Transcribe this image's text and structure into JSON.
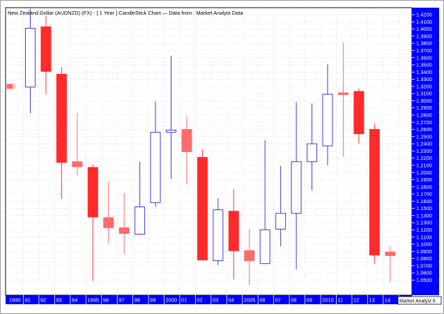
{
  "chart_data": {
    "type": "candlestick",
    "title": "New Zealand Dollar (AUDNZD) (FX) -  [ 1 Year ] CandleStick Chart — Data from : Market Analyst Data",
    "ylim": [
      1.04,
      1.43
    ],
    "y_ticks": [
      "1.4200",
      "1.4100",
      "1.4000",
      "1.3900",
      "1.3800",
      "1.3700",
      "1.3600",
      "1.3500",
      "1.3400",
      "1.3300",
      "1.3200",
      "1.3100",
      "1.3000",
      "1.2900",
      "1.2800",
      "1.2700",
      "1.2600",
      "1.2500",
      "1.2400",
      "1.2300",
      "1.2200",
      "1.2100",
      "1.2000",
      "1.1900",
      "1.1800",
      "1.1700",
      "1.1600",
      "1.1500",
      "1.1400",
      "1.1300",
      "1.1200",
      "1.1100",
      "1.1000",
      "1.0900",
      "1.0800",
      "1.0700",
      "1.0600",
      "1.0500"
    ],
    "x_ticks": [
      "1990",
      "91",
      "92",
      "93",
      "94",
      "1995",
      "96",
      "97",
      "98",
      "99",
      "2000",
      "01",
      "02",
      "03",
      "04",
      "2005",
      "06",
      "07",
      "08",
      "09",
      "2010",
      "11",
      "12",
      "13",
      "14",
      "20"
    ],
    "colors": {
      "up": "#3a3ad4",
      "down_strong": "#ff2a2a",
      "down_light": "#ff6b6b",
      "axis": "#0000ff",
      "grid": "#bdbdbd"
    },
    "candles": [
      {
        "year": "1990",
        "open": 1.323,
        "high": 1.323,
        "low": 1.317,
        "close": 1.317
      },
      {
        "year": "91",
        "open": 1.319,
        "high": 1.428,
        "low": 1.283,
        "close": 1.401
      },
      {
        "year": "92",
        "open": 1.403,
        "high": 1.418,
        "low": 1.309,
        "close": 1.341
      },
      {
        "year": "93",
        "open": 1.337,
        "high": 1.347,
        "low": 1.163,
        "close": 1.214
      },
      {
        "year": "94",
        "open": 1.215,
        "high": 1.283,
        "low": 1.196,
        "close": 1.208
      },
      {
        "year": "1995",
        "open": 1.207,
        "high": 1.211,
        "low": 1.049,
        "close": 1.138
      },
      {
        "year": "96",
        "open": 1.137,
        "high": 1.188,
        "low": 1.101,
        "close": 1.123
      },
      {
        "year": "97",
        "open": 1.123,
        "high": 1.171,
        "low": 1.086,
        "close": 1.115
      },
      {
        "year": "98",
        "open": 1.114,
        "high": 1.215,
        "low": 1.113,
        "close": 1.152
      },
      {
        "year": "99",
        "open": 1.158,
        "high": 1.299,
        "low": 1.152,
        "close": 1.256
      },
      {
        "year": "2000",
        "open": 1.256,
        "high": 1.363,
        "low": 1.191,
        "close": 1.259
      },
      {
        "year": "01",
        "open": 1.26,
        "high": 1.279,
        "low": 1.183,
        "close": 1.229
      },
      {
        "year": "02",
        "open": 1.221,
        "high": 1.232,
        "low": 1.078,
        "close": 1.078
      },
      {
        "year": "03",
        "open": 1.077,
        "high": 1.164,
        "low": 1.071,
        "close": 1.148
      },
      {
        "year": "04",
        "open": 1.146,
        "high": 1.177,
        "low": 1.051,
        "close": 1.091
      },
      {
        "year": "2005",
        "open": 1.091,
        "high": 1.121,
        "low": 1.043,
        "close": 1.077
      },
      {
        "year": "06",
        "open": 1.073,
        "high": 1.245,
        "low": 1.073,
        "close": 1.12
      },
      {
        "year": "07",
        "open": 1.121,
        "high": 1.209,
        "low": 1.097,
        "close": 1.143
      },
      {
        "year": "08",
        "open": 1.143,
        "high": 1.298,
        "low": 1.065,
        "close": 1.215
      },
      {
        "year": "09",
        "open": 1.215,
        "high": 1.296,
        "low": 1.175,
        "close": 1.24
      },
      {
        "year": "2010",
        "open": 1.237,
        "high": 1.351,
        "low": 1.21,
        "close": 1.309
      },
      {
        "year": "11",
        "open": 1.311,
        "high": 1.381,
        "low": 1.222,
        "close": 1.309
      },
      {
        "year": "12",
        "open": 1.313,
        "high": 1.317,
        "low": 1.24,
        "close": 1.254
      },
      {
        "year": "13",
        "open": 1.26,
        "high": 1.268,
        "low": 1.073,
        "close": 1.085
      },
      {
        "year": "14",
        "open": 1.089,
        "high": 1.097,
        "low": 1.047,
        "close": 1.084
      }
    ],
    "badge": "Market Analyst 6"
  }
}
